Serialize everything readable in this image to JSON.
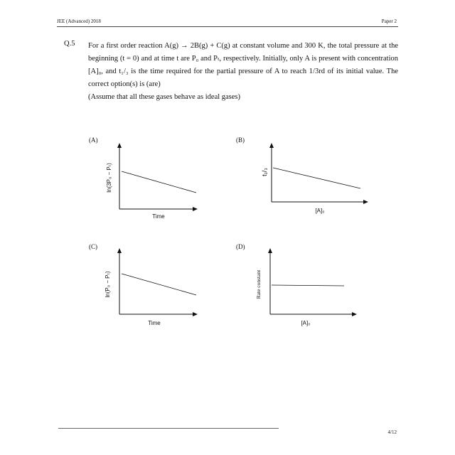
{
  "header": {
    "left": "JEE (Advanced) 2018",
    "right": "Paper 2"
  },
  "question": {
    "number": "Q.5",
    "text_main": "For a first order reaction A(g) → 2B(g) + C(g) at constant volume and 300 K, the total pressure at the beginning (t = 0) and at time t are P₀ and Pₜ, respectively. Initially, only A is present with concentration [A]₀, and t₁/₃ is the time required for the partial pressure of A to reach 1/3rd of its initial value. The correct option(s) is (are)",
    "text_note": "(Assume that all these gases behave as ideal gases)"
  },
  "options": {
    "A": {
      "label": "(A)",
      "ylabel": "ln(3P₀ − Pₜ)",
      "xlabel": "Time"
    },
    "B": {
      "label": "(B)",
      "ylabel": "t₁/₃",
      "xlabel": "[A]₀"
    },
    "C": {
      "label": "(C)",
      "ylabel": "ln(P₀ − Pₜ)",
      "xlabel": "Time"
    },
    "D": {
      "label": "(D)",
      "ylabel": "Rate constant",
      "xlabel": "[A]₀"
    }
  },
  "footer": {
    "page": "4/12"
  }
}
